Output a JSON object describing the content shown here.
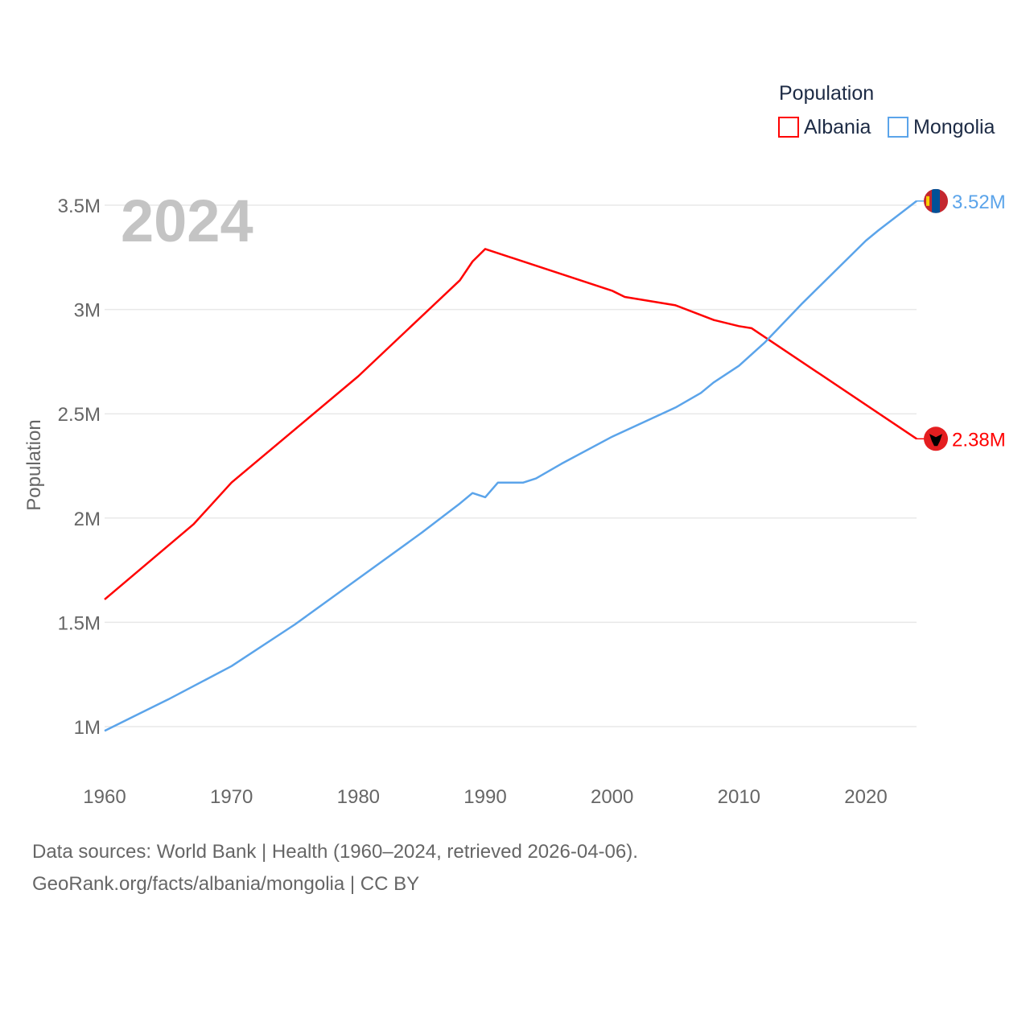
{
  "chart_data": {
    "type": "line",
    "title": "",
    "year_label": "2024",
    "xlabel": "",
    "ylabel": "Population",
    "xlim": [
      1960,
      2024
    ],
    "ylim": [
      0.8,
      3.62
    ],
    "y_unit": "M",
    "grid": true,
    "x_ticks": [
      1960,
      1970,
      1980,
      1990,
      2000,
      2010,
      2020
    ],
    "y_ticks": [
      {
        "value": 1,
        "label": "1M"
      },
      {
        "value": 1.5,
        "label": "1.5M"
      },
      {
        "value": 2,
        "label": "2M"
      },
      {
        "value": 2.5,
        "label": "2.5M"
      },
      {
        "value": 3,
        "label": "3M"
      },
      {
        "value": 3.5,
        "label": "3.5M"
      }
    ],
    "legend": {
      "title": "Population",
      "placement": "top-right"
    },
    "series": [
      {
        "name": "Albania",
        "color": "#ff0000",
        "end_label": "2.38M",
        "flag": "albania-flag",
        "x": [
          1960,
          1967,
          1970,
          1980,
          1988,
          1989,
          1990,
          2000,
          2001,
          2005,
          2008,
          2010,
          2011,
          2024
        ],
        "y": [
          1.61,
          1.97,
          2.17,
          2.68,
          3.14,
          3.23,
          3.29,
          3.09,
          3.06,
          3.02,
          2.95,
          2.92,
          2.91,
          2.38
        ]
      },
      {
        "name": "Mongolia",
        "color": "#5ba4ea",
        "end_label": "3.52M",
        "flag": "mongolia-flag",
        "x": [
          1960,
          1962,
          1965,
          1970,
          1975,
          1980,
          1985,
          1988,
          1989,
          1990,
          1991,
          1993,
          1994,
          1996,
          2000,
          2005,
          2007,
          2008,
          2010,
          2012,
          2015,
          2020,
          2021,
          2024
        ],
        "y": [
          0.98,
          1.04,
          1.13,
          1.29,
          1.49,
          1.71,
          1.93,
          2.07,
          2.12,
          2.1,
          2.17,
          2.17,
          2.19,
          2.26,
          2.39,
          2.53,
          2.6,
          2.65,
          2.73,
          2.84,
          3.03,
          3.33,
          3.38,
          3.52
        ]
      }
    ]
  },
  "footer": {
    "line1": "Data sources: World Bank | Health (1960–2024, retrieved 2026-04-06).",
    "line2": "GeoRank.org/facts/albania/mongolia | CC BY"
  }
}
